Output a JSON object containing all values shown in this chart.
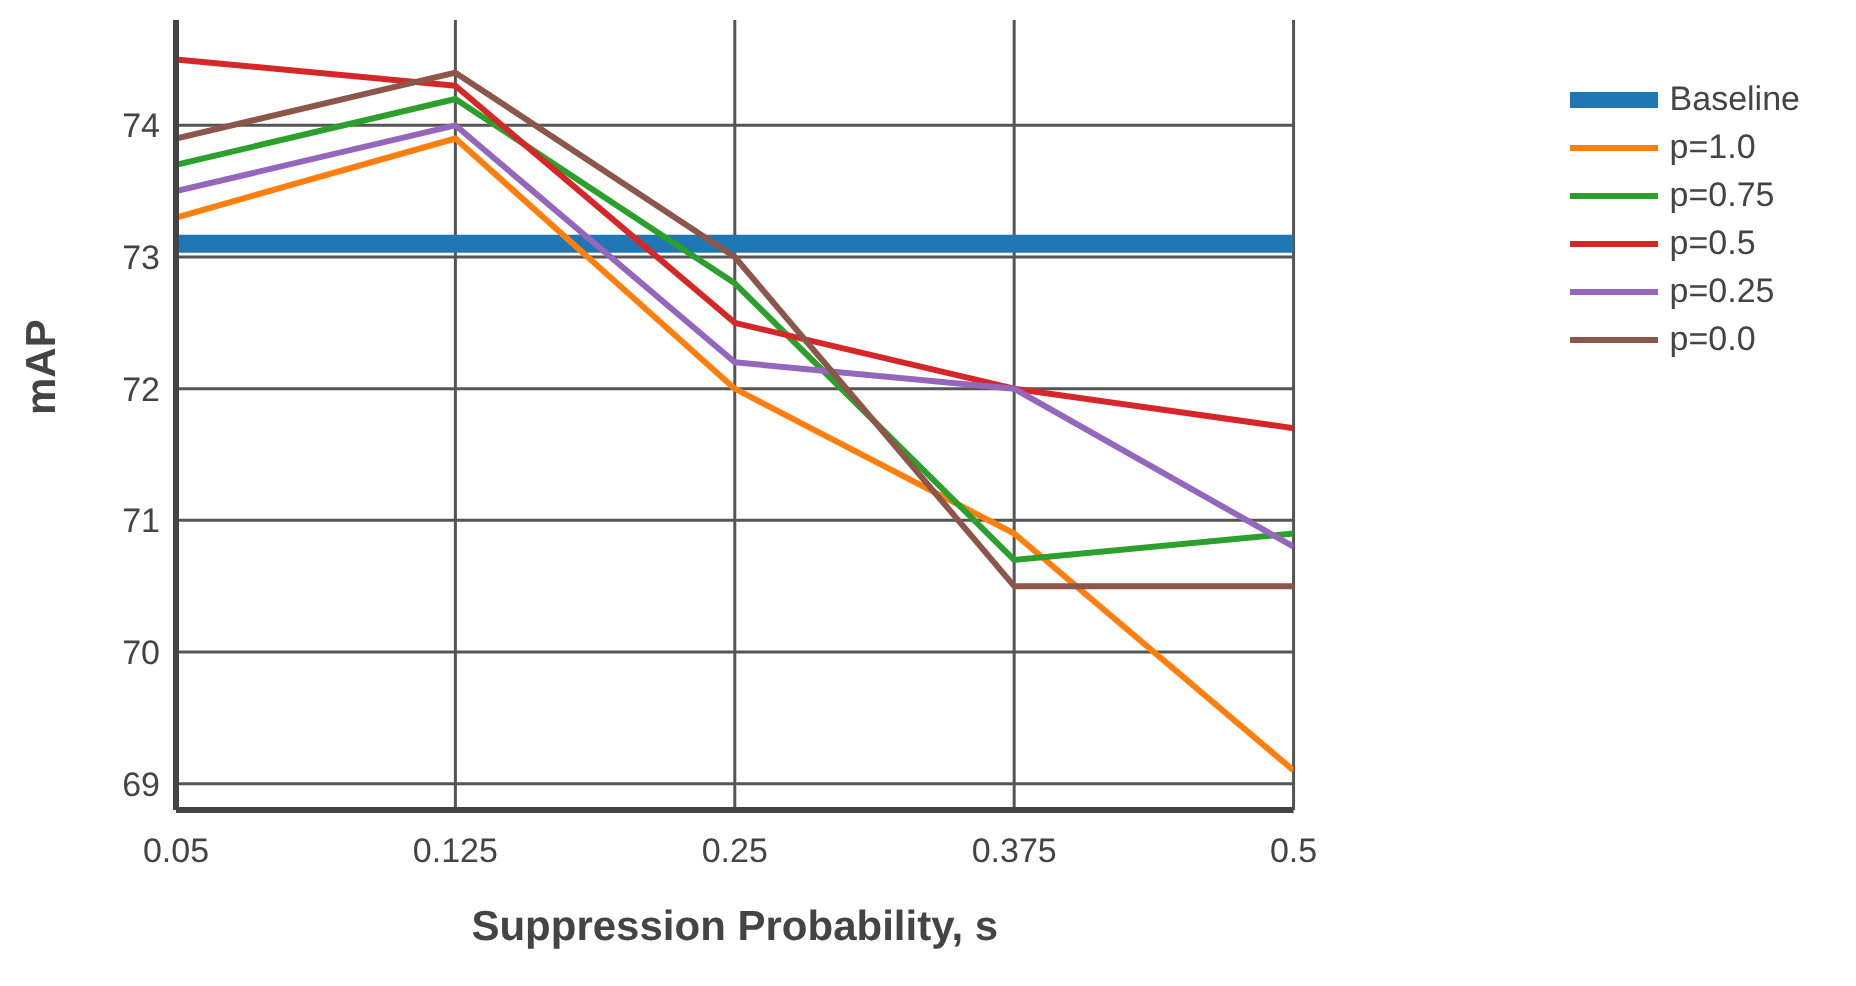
{
  "chart_data": {
    "type": "line",
    "xlabel": "Suppression Probability, s",
    "ylabel": "mAP",
    "categories": [
      "0.05",
      "0.125",
      "0.25",
      "0.375",
      "0.5"
    ],
    "ylim": [
      68.8,
      74.8
    ],
    "yticks": [
      69,
      70,
      71,
      72,
      73,
      74
    ],
    "grid": true,
    "legend": "top right",
    "marker": "none",
    "line_style": "solid",
    "series": [
      {
        "name": "Baseline",
        "color": "#1f77b4",
        "values": [
          73.1,
          73.1,
          73.1,
          73.1,
          73.1
        ]
      },
      {
        "name": "p=1.0",
        "color": "#ff7f0e",
        "values": [
          73.3,
          73.9,
          72.0,
          70.9,
          69.1
        ]
      },
      {
        "name": "p=0.75",
        "color": "#2ca02c",
        "values": [
          73.7,
          74.2,
          72.8,
          70.7,
          70.9
        ]
      },
      {
        "name": "p=0.5",
        "color": "#d62728",
        "values": [
          74.5,
          74.3,
          72.5,
          72.0,
          71.7
        ]
      },
      {
        "name": "p=0.25",
        "color": "#9467bd",
        "values": [
          73.5,
          74.0,
          72.2,
          72.0,
          70.8
        ]
      },
      {
        "name": "p=0.0",
        "color": "#8c564b",
        "values": [
          73.9,
          74.4,
          73.0,
          70.5,
          70.5
        ]
      }
    ]
  }
}
